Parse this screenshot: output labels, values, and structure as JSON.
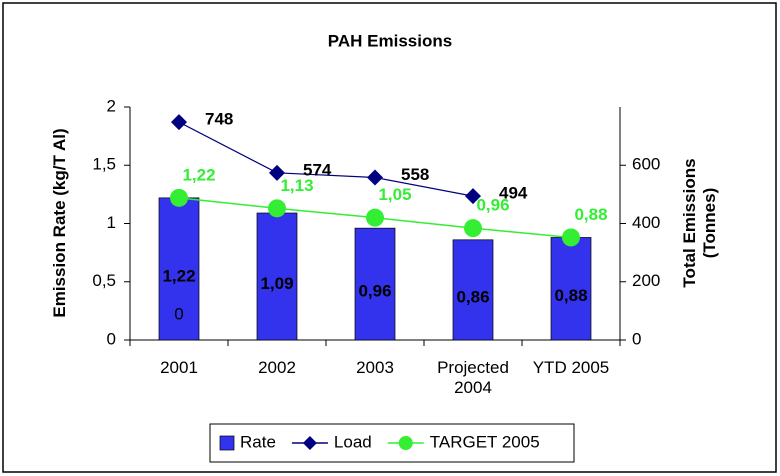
{
  "chart_data": {
    "type": "bar",
    "title": "PAH Emissions",
    "ylabel": "Emission Rate (kg/T Al)",
    "y2label": "Total Emissions (Tonnes)",
    "categories": [
      "2001",
      "2002",
      "2003",
      "Projected 2004",
      "YTD 2005"
    ],
    "series": [
      {
        "name": "Rate",
        "type": "bar",
        "color": "#3333ee",
        "values": [
          1.22,
          1.09,
          0.96,
          0.86,
          0.88
        ],
        "value_labels": [
          "1,22",
          "1,09",
          "0,96",
          "0,86",
          "0,88"
        ]
      },
      {
        "name": "Load",
        "type": "line",
        "axis": "y2",
        "color": "#000080",
        "values": [
          748,
          574,
          558,
          494,
          null
        ]
      },
      {
        "name": "TARGET 2005",
        "type": "line",
        "color": "#33ee33",
        "values": [
          1.22,
          1.13,
          1.05,
          0.96,
          0.88
        ],
        "value_labels": [
          "1,22",
          "1,13",
          "1,05",
          "0,96",
          "0,88"
        ]
      }
    ],
    "annotation": "0",
    "ylim": [
      0,
      2
    ],
    "yticks": [
      0,
      {
        "value": 0.5,
        "label": "0,5"
      },
      1,
      {
        "value": 1.5,
        "label": "1,5"
      },
      2
    ],
    "y2lim": [
      0,
      800
    ],
    "y2ticks": [
      0,
      200,
      400,
      600
    ],
    "legend": "bottom"
  }
}
